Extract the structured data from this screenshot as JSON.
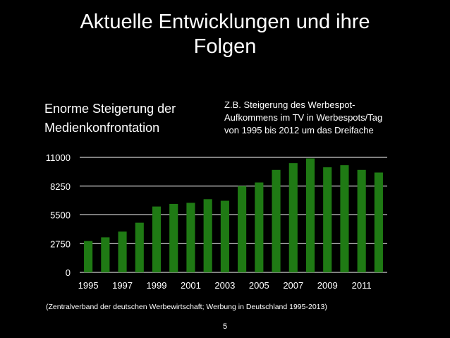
{
  "slide": {
    "title_line1": "Aktuelle Entwicklungen und ihre",
    "title_line2": "Folgen",
    "left_text_line1": "Enorme Steigerung der",
    "left_text_line2": "Medienkonfrontation",
    "right_text_line1": "Z.B. Steigerung des Werbespot-",
    "right_text_line2": "Aufkommens im TV in Werbespots/Tag",
    "right_text_line3": "von 1995 bis 2012 um das Dreifache",
    "source": "(Zentralverband der deutschen Werbewirtschaft; Werbung in Deutschland 1995-2013)",
    "page_number": "5"
  },
  "colors": {
    "background": "#000000",
    "bar": "#1f7a14",
    "grid": "#ffffff",
    "text": "#ffffff"
  },
  "chart_data": {
    "type": "bar",
    "title": "",
    "xlabel": "",
    "ylabel": "",
    "categories": [
      "1995",
      "1996",
      "1997",
      "1998",
      "1999",
      "2000",
      "2001",
      "2002",
      "2003",
      "2004",
      "2005",
      "2006",
      "2007",
      "2008",
      "2009",
      "2010",
      "2011",
      "2012"
    ],
    "values": [
      3000,
      3350,
      3900,
      4750,
      6300,
      6550,
      6650,
      7000,
      6850,
      8250,
      8600,
      9800,
      10450,
      10900,
      10050,
      10250,
      9800,
      9550
    ],
    "ylim": [
      0,
      11000
    ],
    "yticks": [
      0,
      2750,
      5500,
      8250,
      11000
    ],
    "xtick_labels": [
      "1995",
      "1997",
      "1999",
      "2001",
      "2003",
      "2005",
      "2007",
      "2009",
      "2011"
    ],
    "grid": true
  }
}
